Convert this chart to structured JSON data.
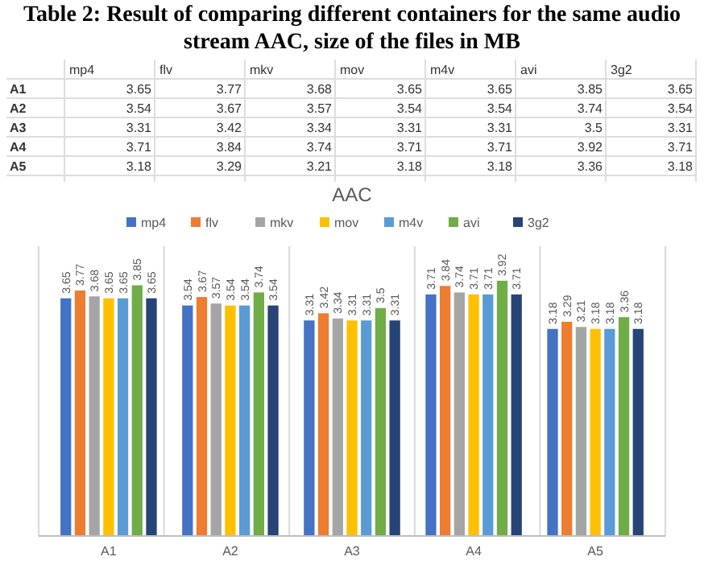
{
  "chart_data": [
    {
      "type": "other",
      "title": "Table 2: Result of comparing different containers for the same audio stream AAC, size of the files in MB",
      "categories": [
        "A1",
        "A2",
        "A3",
        "A4",
        "A5"
      ],
      "data_labels": true,
      "series": [
        {
          "name": "mp4",
          "values": [
            3.65,
            3.54,
            3.31,
            3.71,
            3.18
          ]
        },
        {
          "name": "flv",
          "values": [
            3.77,
            3.67,
            3.42,
            3.84,
            3.29
          ]
        },
        {
          "name": "mkv",
          "values": [
            3.68,
            3.57,
            3.34,
            3.74,
            3.21
          ]
        },
        {
          "name": "mov",
          "values": [
            3.65,
            3.54,
            3.31,
            3.71,
            3.18
          ]
        },
        {
          "name": "m4v",
          "values": [
            3.65,
            3.54,
            3.31,
            3.71,
            3.18
          ]
        },
        {
          "name": "avi",
          "values": [
            3.85,
            3.74,
            3.5,
            3.92,
            3.36
          ]
        },
        {
          "name": "3g2",
          "values": [
            3.65,
            3.54,
            3.31,
            3.71,
            3.18
          ]
        }
      ]
    },
    {
      "type": "bar",
      "title": "AAC",
      "categories": [
        "A1",
        "A2",
        "A3",
        "A4",
        "A5"
      ],
      "series": [
        {
          "name": "mp4",
          "color": "#4472c4",
          "values": [
            3.65,
            3.54,
            3.31,
            3.71,
            3.18
          ]
        },
        {
          "name": "flv",
          "color": "#ed7d31",
          "values": [
            3.77,
            3.67,
            3.42,
            3.84,
            3.29
          ]
        },
        {
          "name": "mkv",
          "color": "#a5a5a5",
          "values": [
            3.68,
            3.57,
            3.34,
            3.74,
            3.21
          ]
        },
        {
          "name": "mov",
          "color": "#ffc000",
          "values": [
            3.65,
            3.54,
            3.31,
            3.71,
            3.18
          ]
        },
        {
          "name": "m4v",
          "color": "#5b9bd5",
          "values": [
            3.65,
            3.54,
            3.31,
            3.71,
            3.18
          ]
        },
        {
          "name": "avi",
          "color": "#70ad47",
          "values": [
            3.85,
            3.74,
            3.5,
            3.92,
            3.36
          ]
        },
        {
          "name": "3g2",
          "color": "#264478",
          "values": [
            3.65,
            3.54,
            3.31,
            3.71,
            3.18
          ]
        }
      ],
      "ylim": [
        0,
        4.4
      ],
      "tick_labels": "x",
      "grid": "x",
      "legend": "top",
      "data_labels": true
    }
  ]
}
